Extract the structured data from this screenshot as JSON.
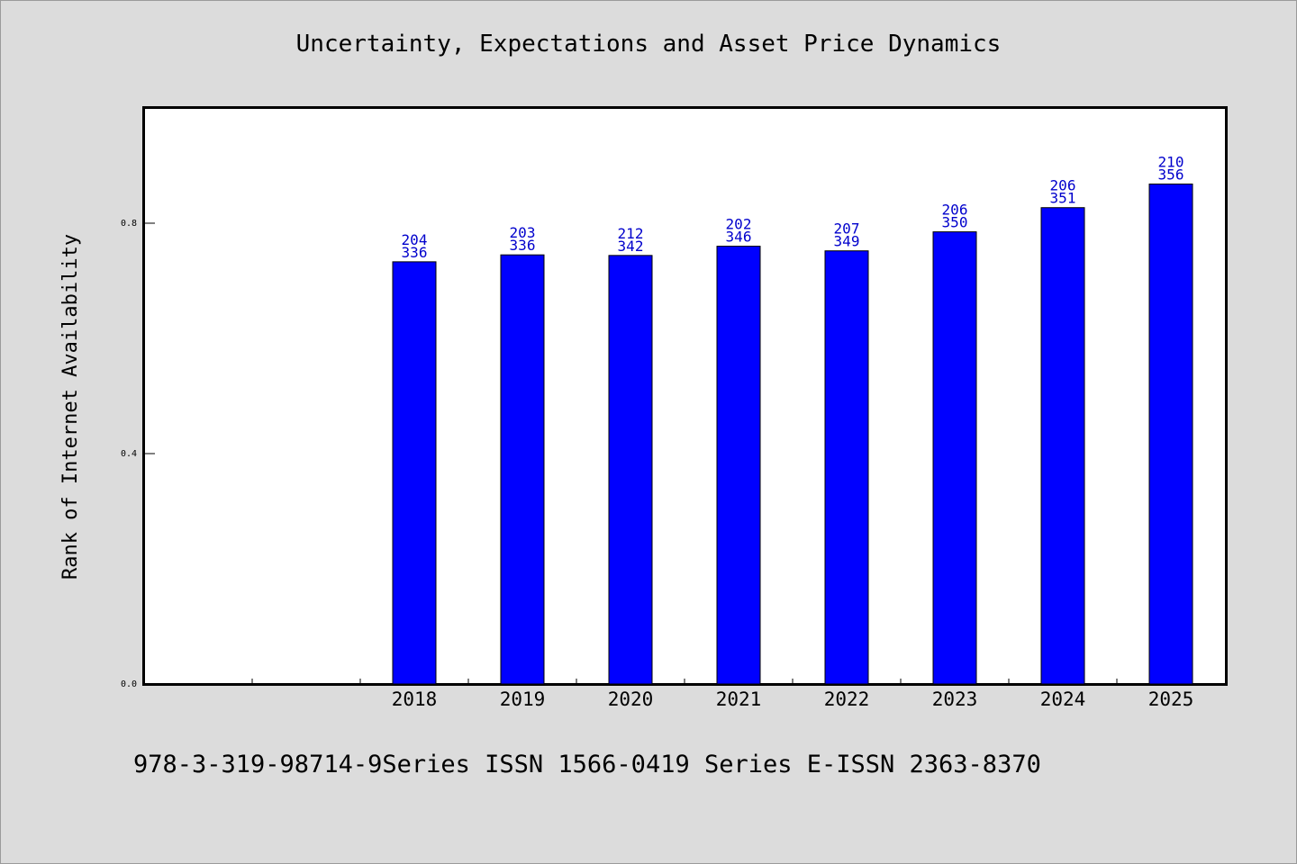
{
  "chart_data": {
    "type": "bar",
    "title": "Uncertainty, Expectations and Asset Price Dynamics",
    "ylabel": "Rank of Internet Availability",
    "xlabel": "",
    "ylim": [
      0,
      1.0
    ],
    "yticks": [
      "0.0",
      "0.4",
      "0.8"
    ],
    "ytick_values": [
      0.0,
      0.4,
      0.8
    ],
    "categories": [
      "",
      "",
      "2018",
      "2019",
      "2020",
      "2021",
      "2022",
      "2023",
      "2024",
      "2025"
    ],
    "values": [
      null,
      null,
      0.733,
      0.745,
      0.744,
      0.76,
      0.752,
      0.785,
      0.827,
      0.868
    ],
    "labels_top": [
      "",
      "",
      "204",
      "203",
      "212",
      "202",
      "207",
      "206",
      "206",
      "210"
    ],
    "labels_bottom": [
      "",
      "",
      "336",
      "336",
      "342",
      "346",
      "349",
      "350",
      "351",
      "356"
    ],
    "bar_color": "#0000ff",
    "label_color": "#0000cc",
    "grid": false
  },
  "footer": "978-3-319-98714-9Series ISSN 1566-0419 Series E-ISSN 2363-8370"
}
